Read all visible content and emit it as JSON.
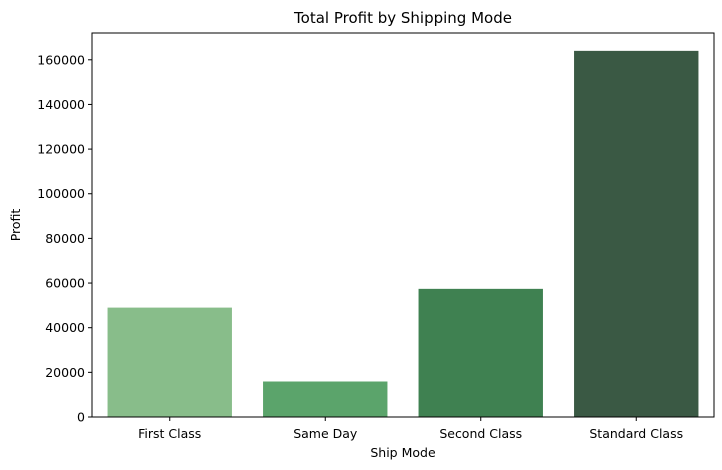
{
  "chart_data": {
    "type": "bar",
    "title": "Total Profit by Shipping Mode",
    "xlabel": "Ship Mode",
    "ylabel": "Profit",
    "categories": [
      "First Class",
      "Same Day",
      "Second Class",
      "Standard Class"
    ],
    "values": [
      49000,
      15900,
      57400,
      164000
    ],
    "colors": [
      "#88bd8a",
      "#5ba46b",
      "#3f8151",
      "#3a5944"
    ],
    "ylim": [
      0,
      172000
    ],
    "yticks": [
      0,
      20000,
      40000,
      60000,
      80000,
      100000,
      120000,
      140000,
      160000
    ],
    "ytick_labels": [
      "0",
      "20000",
      "40000",
      "60000",
      "80000",
      "100000",
      "120000",
      "140000",
      "160000"
    ],
    "grid": false,
    "legend": "none"
  }
}
